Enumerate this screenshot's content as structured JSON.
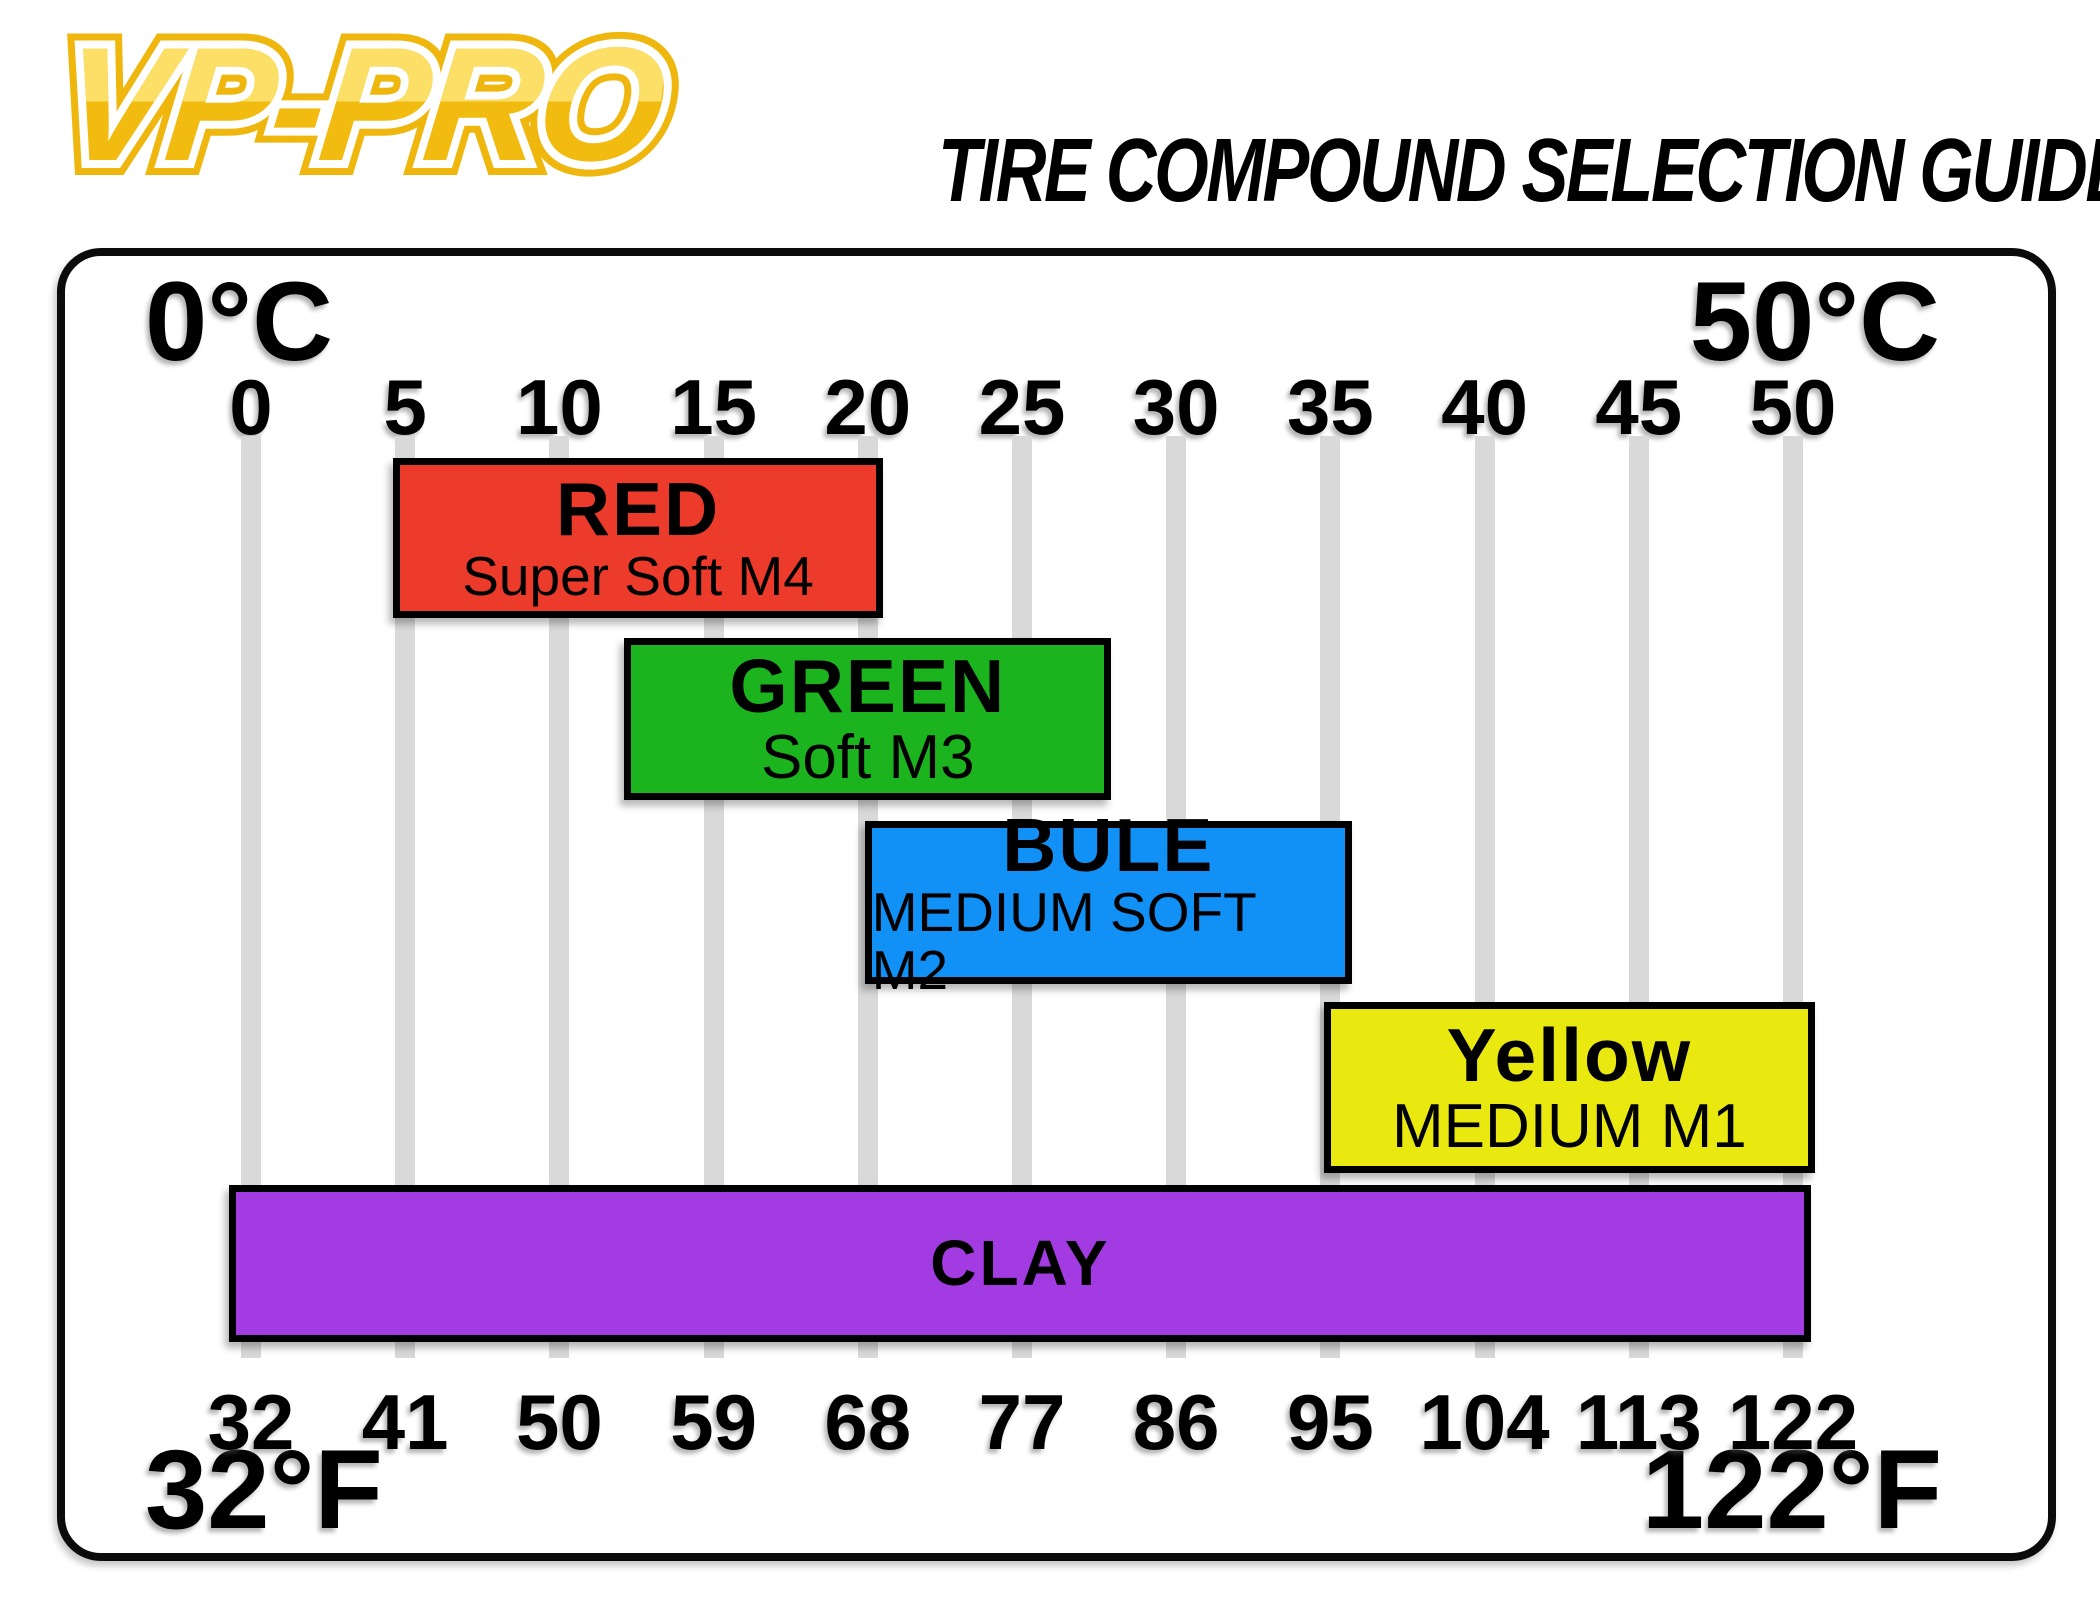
{
  "header": {
    "logo_text": "VP-PRO",
    "title": "TIRE COMPOUND SELECTION GUIDE"
  },
  "chart_data": {
    "type": "bar",
    "subtype": "horizontal-temperature-range-chart",
    "title": "TIRE COMPOUND SELECTION GUIDE",
    "axes": {
      "top": {
        "unit": "°C",
        "min": 0,
        "max": 50,
        "min_label": "0°C",
        "max_label": "50°C",
        "ticks": [
          "0",
          "5",
          "10",
          "15",
          "20",
          "25",
          "30",
          "35",
          "40",
          "45",
          "50"
        ]
      },
      "bottom": {
        "unit": "°F",
        "min": 32,
        "max": 122,
        "min_label": "32°F",
        "max_label": "122°F",
        "ticks": [
          "32",
          "41",
          "50",
          "59",
          "68",
          "77",
          "86",
          "95",
          "104",
          "113",
          "122"
        ]
      }
    },
    "grid": {
      "show_vertical": true,
      "color": "#d9d9d9"
    },
    "series": [
      {
        "label": "RED",
        "sublabel": "Super Soft M4",
        "color": "#ec3a2b",
        "range_c": [
          4.6,
          20.5
        ]
      },
      {
        "label": "GREEN",
        "sublabel": "Soft M3",
        "color": "#1cb41e",
        "range_c": [
          12.1,
          27.9
        ]
      },
      {
        "label": "BULE",
        "sublabel": "MEDIUM SOFT M2",
        "color": "#1190f5",
        "range_c": [
          19.9,
          35.7
        ]
      },
      {
        "label": "Yellow",
        "sublabel": "MEDIUM M1",
        "color": "#e9e90f",
        "range_c": [
          34.8,
          50.7
        ]
      },
      {
        "label": "CLAY",
        "sublabel": "",
        "color": "#a33be3",
        "range_c": [
          -0.7,
          50.6
        ]
      }
    ]
  }
}
